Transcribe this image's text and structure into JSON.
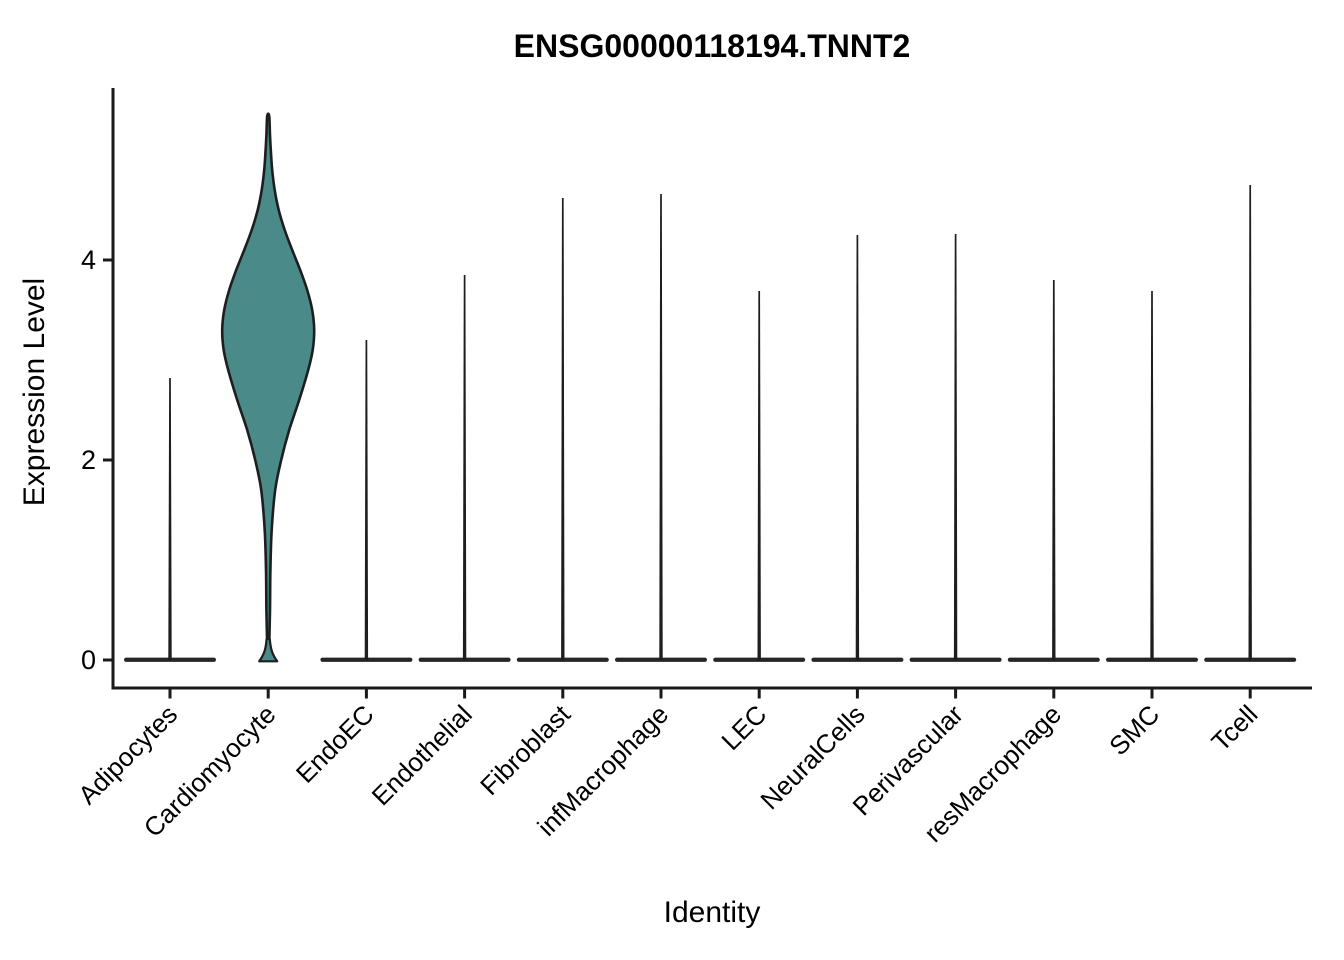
{
  "chart_data": {
    "type": "violin",
    "title": "ENSG00000118194.TNNT2",
    "xlabel": "Identity",
    "ylabel": "Expression Level",
    "yticks": [
      0,
      2,
      4
    ],
    "ylim": [
      -0.28,
      5.95
    ],
    "grid": false,
    "legend": "none",
    "categories": [
      {
        "label": "Adipocytes",
        "shape": "spike",
        "peak": 2.82,
        "baseline_width": 0.92
      },
      {
        "label": "Cardiomyocyte",
        "shape": "violin",
        "peak": 5.44,
        "baseline_width": 0.18
      },
      {
        "label": "EndoEC",
        "shape": "spike",
        "peak": 3.2,
        "baseline_width": 0.92
      },
      {
        "label": "Endothelial",
        "shape": "spike",
        "peak": 3.85,
        "baseline_width": 0.92
      },
      {
        "label": "Fibroblast",
        "shape": "spike",
        "peak": 4.62,
        "baseline_width": 0.92
      },
      {
        "label": "infMacrophage",
        "shape": "spike",
        "peak": 4.66,
        "baseline_width": 0.92
      },
      {
        "label": "LEC",
        "shape": "spike",
        "peak": 3.69,
        "baseline_width": 0.92
      },
      {
        "label": "NeuralCells",
        "shape": "spike",
        "peak": 4.25,
        "baseline_width": 0.92
      },
      {
        "label": "Perivascular",
        "shape": "spike",
        "peak": 4.26,
        "baseline_width": 0.92
      },
      {
        "label": "resMacrophage",
        "shape": "spike",
        "peak": 3.8,
        "baseline_width": 0.92
      },
      {
        "label": "SMC",
        "shape": "spike",
        "peak": 3.69,
        "baseline_width": 0.92
      },
      {
        "label": "Tcell",
        "shape": "spike",
        "peak": 4.75,
        "baseline_width": 0.92
      }
    ],
    "violin_profile_cardiomyocyte": [
      [
        0.22,
        0.012
      ],
      [
        0.5,
        0.018
      ],
      [
        0.9,
        0.022
      ],
      [
        1.3,
        0.035
      ],
      [
        1.7,
        0.07
      ],
      [
        2.0,
        0.13
      ],
      [
        2.3,
        0.21
      ],
      [
        2.6,
        0.31
      ],
      [
        2.9,
        0.4
      ],
      [
        3.1,
        0.445
      ],
      [
        3.3,
        0.46
      ],
      [
        3.5,
        0.44
      ],
      [
        3.7,
        0.39
      ],
      [
        3.9,
        0.32
      ],
      [
        4.1,
        0.24
      ],
      [
        4.3,
        0.165
      ],
      [
        4.5,
        0.105
      ],
      [
        4.7,
        0.065
      ],
      [
        4.9,
        0.04
      ],
      [
        5.1,
        0.026
      ],
      [
        5.25,
        0.018
      ],
      [
        5.44,
        0.01
      ]
    ],
    "base_blob": {
      "category": "Cardiomyocyte",
      "half_width": 0.09,
      "top_value": 0.21
    },
    "colors": {
      "violin_fill": "#4A8A89",
      "outline": "#1E1E1E",
      "axis": "#1A1A1A",
      "baseline_bar": "#262626",
      "text": "#000000",
      "background": "#FFFFFF"
    },
    "ytick_labels": {
      "t0": "0",
      "t2": "2",
      "t4": "4"
    }
  }
}
